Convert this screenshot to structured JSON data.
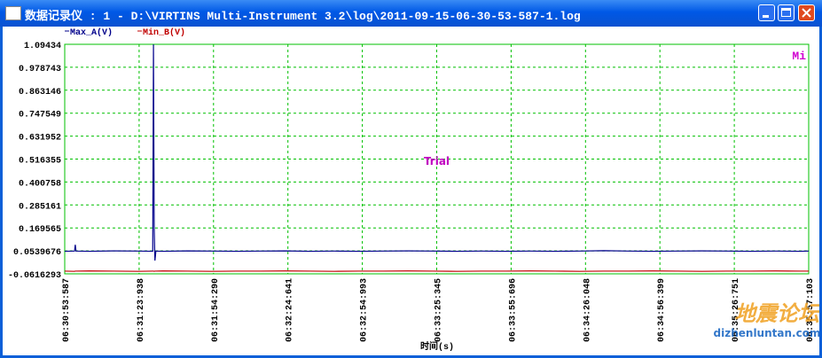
{
  "window": {
    "title": "数据记录仪 : 1 - D:\\VIRTINS Multi-Instrument 3.2\\log\\2011-09-15-06-30-53-587-1.log"
  },
  "chart_data": {
    "type": "line",
    "x_label": "时间(s)",
    "annotations": [
      "Trial",
      "Mi"
    ],
    "x": [
      0,
      4,
      4.3,
      4.6,
      10,
      20,
      30,
      35.9,
      36.2,
      36.5,
      36.8,
      37.2,
      40,
      50,
      60,
      70,
      80,
      90,
      100,
      110,
      120,
      130,
      140,
      150,
      160,
      170,
      180,
      190,
      200,
      210,
      220,
      230,
      240,
      250,
      260,
      270,
      280,
      290,
      300,
      303.516
    ],
    "series": [
      {
        "name": "Max_A(V)",
        "color": "#00008b",
        "values": [
          0.052,
          0.053,
          0.085,
          0.053,
          0.052,
          0.054,
          0.053,
          0.052,
          1.094,
          0.17,
          0.005,
          0.053,
          0.052,
          0.054,
          0.053,
          0.052,
          0.053,
          0.054,
          0.052,
          0.053,
          0.052,
          0.053,
          0.054,
          0.053,
          0.052,
          0.053,
          0.052,
          0.053,
          0.052,
          0.053,
          0.055,
          0.053,
          0.052,
          0.053,
          0.054,
          0.053,
          0.052,
          0.053,
          0.052,
          0.053
        ]
      },
      {
        "name": "Min_B(V)",
        "color": "#c00000",
        "values": [
          -0.048,
          -0.049,
          -0.048,
          -0.048,
          -0.047,
          -0.048,
          -0.049,
          -0.048,
          -0.048,
          -0.049,
          -0.048,
          -0.048,
          -0.047,
          -0.048,
          -0.049,
          -0.048,
          -0.048,
          -0.047,
          -0.048,
          -0.049,
          -0.048,
          -0.048,
          -0.047,
          -0.048,
          -0.049,
          -0.048,
          -0.048,
          -0.047,
          -0.048,
          -0.049,
          -0.048,
          -0.048,
          -0.047,
          -0.048,
          -0.049,
          -0.048,
          -0.048,
          -0.047,
          -0.048,
          -0.048
        ]
      }
    ],
    "xlim": [
      0,
      303.516
    ],
    "xticks": [
      {
        "value": 0,
        "label": "06:30:53:587"
      },
      {
        "value": 30.351,
        "label": "06:31:23:938"
      },
      {
        "value": 60.703,
        "label": "06:31:54:290"
      },
      {
        "value": 91.054,
        "label": "06:32:24:641"
      },
      {
        "value": 121.406,
        "label": "06:32:54:993"
      },
      {
        "value": 151.758,
        "label": "06:33:25:345"
      },
      {
        "value": 182.109,
        "label": "06:33:55:696"
      },
      {
        "value": 212.461,
        "label": "06:34:26:048"
      },
      {
        "value": 242.812,
        "label": "06:34:56:399"
      },
      {
        "value": 273.164,
        "label": "06:35:26:751"
      },
      {
        "value": 303.516,
        "label": "06:35:57:103"
      }
    ],
    "ylim": [
      -0.0616293,
      1.09434
    ],
    "yticks": [
      1.09434,
      0.978743,
      0.863146,
      0.747549,
      0.631952,
      0.516355,
      0.400758,
      0.285161,
      0.169565,
      0.0539676,
      -0.0616293
    ],
    "grid": true,
    "grid_color": "#00c000"
  },
  "watermark": {
    "text": "地震论坛",
    "url": "dizhenluntan.com"
  }
}
